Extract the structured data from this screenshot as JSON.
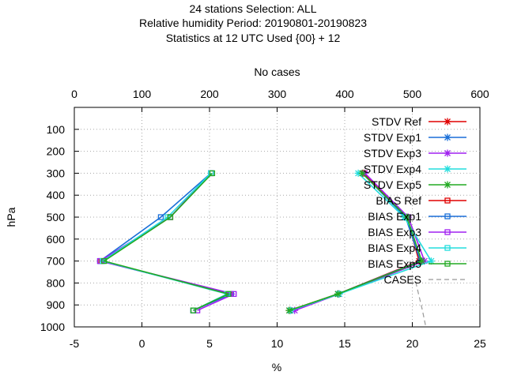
{
  "chart_data": {
    "type": "line",
    "title_lines": [
      "24 stations Selection: ALL",
      "Relative humidity  Period: 20190801-20190823",
      "Statistics at 12 UTC  Used {00} + 12"
    ],
    "xlabel": "%",
    "ylabel": "hPa",
    "x2label": "No cases",
    "xlim": [
      -5,
      25
    ],
    "x2lim": [
      0,
      600
    ],
    "ylim": [
      1000,
      0
    ],
    "y_reversed": true,
    "grid": true,
    "legend_position": "top-right",
    "x_ticks": [
      "-5",
      "0",
      "5",
      "10",
      "15",
      "20",
      "25"
    ],
    "x2_ticks": [
      "0",
      "100",
      "200",
      "300",
      "400",
      "500",
      "600"
    ],
    "y_ticks": [
      "100",
      "200",
      "300",
      "400",
      "500",
      "600",
      "700",
      "800",
      "900",
      "1000"
    ],
    "levels": [
      300,
      500,
      700,
      850,
      925
    ],
    "series": [
      {
        "name": "STDV Ref",
        "color": "#e00000",
        "marker": "x",
        "values": [
          16.4,
          19.6,
          20.5,
          14.5,
          10.9
        ]
      },
      {
        "name": "STDV Exp1",
        "color": "#1a6fd8",
        "marker": "x",
        "values": [
          16.3,
          19.5,
          20.6,
          14.5,
          11.0
        ]
      },
      {
        "name": "STDV Exp3",
        "color": "#a020f0",
        "marker": "x",
        "values": [
          16.5,
          19.7,
          20.9,
          14.6,
          11.3
        ]
      },
      {
        "name": "STDV Exp4",
        "color": "#22dddd",
        "marker": "x",
        "values": [
          16.0,
          19.4,
          21.4,
          14.6,
          11.0
        ]
      },
      {
        "name": "STDV Exp5",
        "color": "#22aa22",
        "marker": "x",
        "values": [
          16.3,
          19.6,
          20.7,
          14.5,
          10.9
        ]
      },
      {
        "name": "BIAS Ref",
        "color": "#e00000",
        "marker": "square",
        "values": [
          5.1,
          2.1,
          -3.0,
          6.5,
          3.8
        ]
      },
      {
        "name": "BIAS Exp1",
        "color": "#1a6fd8",
        "marker": "square",
        "values": [
          5.1,
          1.4,
          -3.1,
          6.6,
          3.8
        ]
      },
      {
        "name": "BIAS Exp3",
        "color": "#a020f0",
        "marker": "square",
        "values": [
          5.1,
          2.1,
          -3.1,
          6.8,
          4.1
        ]
      },
      {
        "name": "BIAS Exp4",
        "color": "#22dddd",
        "marker": "square",
        "values": [
          5.1,
          1.9,
          -2.9,
          6.3,
          3.8
        ]
      },
      {
        "name": "BIAS Exp5",
        "color": "#22aa22",
        "marker": "square",
        "values": [
          5.2,
          2.1,
          -2.8,
          6.4,
          3.8
        ]
      }
    ],
    "cases": {
      "name": "CASES",
      "color": "#999999",
      "points": [
        [
          505,
          795
        ],
        [
          510,
          860
        ],
        [
          515,
          925
        ],
        [
          520,
          1000
        ]
      ]
    }
  }
}
